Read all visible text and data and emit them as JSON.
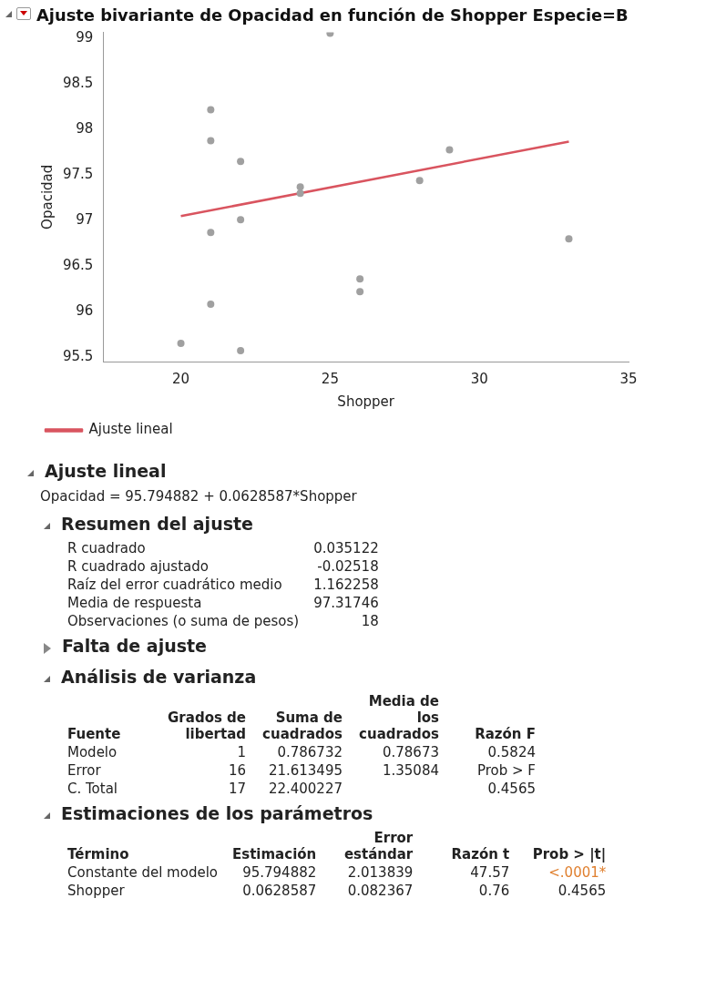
{
  "chart_data": [
    {
      "type": "scatter",
      "title": "Ajuste bivariante de Opacidad en función de Shopper Especie=B",
      "xlabel": "Shopper",
      "ylabel": "Opacidad",
      "xlim": [
        17.4,
        35
      ],
      "ylim": [
        95.45,
        99.07
      ],
      "xticks": [
        20,
        25,
        30,
        35
      ],
      "yticks": [
        95.5,
        96,
        96.5,
        97,
        97.5,
        98,
        98.5,
        99
      ],
      "grid": false,
      "legend": "bottom left",
      "marker": "circle",
      "series": [
        {
          "type": "scatter",
          "color": "#a0a0a0",
          "x": [
            25,
            21,
            21,
            22,
            22,
            21,
            24,
            24,
            28,
            29,
            33,
            26,
            26,
            21,
            20,
            22
          ],
          "values": [
            99.06,
            98.22,
            97.88,
            97.65,
            97.01,
            96.87,
            97.37,
            97.3,
            97.44,
            97.78,
            96.8,
            96.36,
            96.22,
            96.08,
            95.65,
            95.57
          ]
        },
        {
          "type": "line",
          "name": "Ajuste lineal",
          "color": "#d9545f",
          "marker": "none",
          "x": [
            20,
            33
          ],
          "values": [
            97.05,
            97.87
          ]
        }
      ]
    },
    {
      "type": "other",
      "annotations": [
        "Ajuste lineal",
        "Opacidad = 95.794882 + 0.0628587*Shopper",
        "Resumen del ajuste",
        "R cuadrado",
        "0.035122",
        "R cuadrado ajustado",
        "-0.02518",
        "Raíz del error cuadrático medio",
        "1.162258",
        "Media de respuesta",
        "97.31746",
        "Observaciones (o suma de pesos)",
        "18",
        "Falta de ajuste",
        "Análisis de varianza",
        "Fuente",
        "Grados de libertad",
        "Suma de cuadrados",
        "Media de los cuadrados",
        "Razón F",
        "Modelo",
        "1",
        "0.786732",
        "0.78673",
        "0.5824",
        "Error",
        "16",
        "21.613495",
        "1.35084",
        "Prob > F",
        "C. Total",
        "17",
        "22.400227",
        "0.4565",
        "Estimaciones de los parámetros",
        "Término",
        "Estimación",
        "Error estándar",
        "Razón t",
        "Prob > |t|",
        "Constante del modelo",
        "95.794882",
        "2.013839",
        "47.57",
        "<.0001*",
        "Shopper",
        "0.0628587",
        "0.082367",
        "0.76",
        "0.4565"
      ]
    }
  ]
}
